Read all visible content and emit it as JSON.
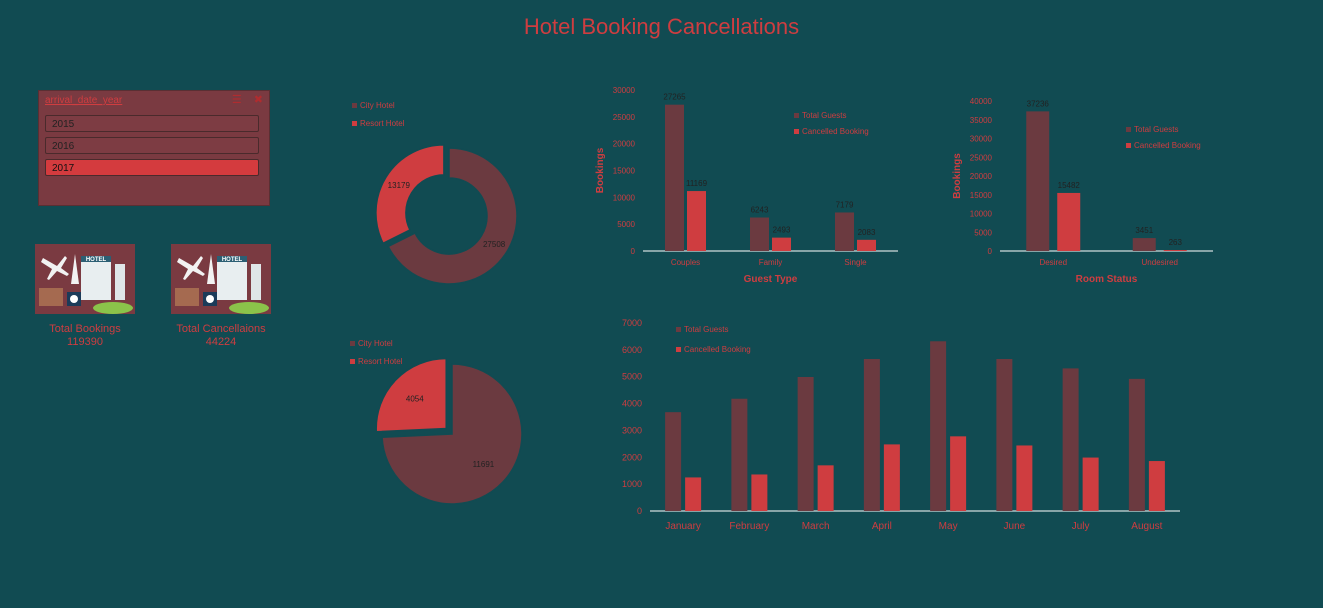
{
  "title": "Hotel Booking Cancellations",
  "colors": {
    "background": "#114b52",
    "dark": "#6b3a40",
    "red": "#cf3d40"
  },
  "slicer": {
    "header": "arrival_date_year",
    "items": [
      "2015",
      "2016",
      "2017"
    ],
    "selected": "2017",
    "icons": [
      "multi-select-icon",
      "clear-filter-icon"
    ]
  },
  "kpis": [
    {
      "label": "Total Bookings",
      "value": "119390"
    },
    {
      "label": "Total Cancellaions",
      "value": "44224"
    }
  ],
  "chart_data": [
    {
      "type": "donut",
      "legend": [
        "City Hotel",
        "Resort Hotel"
      ],
      "values": [
        27508,
        13179
      ]
    },
    {
      "type": "pie",
      "legend": [
        "City Hotel",
        "Resort Hotel"
      ],
      "values": [
        11691,
        4054
      ]
    },
    {
      "type": "bar",
      "categories": [
        "Couples",
        "Family",
        "Single"
      ],
      "series": [
        {
          "name": "Total Guests",
          "values": [
            27265,
            6243,
            7179
          ]
        },
        {
          "name": "Cancelled Booking",
          "values": [
            11169,
            2493,
            2083
          ]
        }
      ],
      "xlabel": "Guest Type",
      "ylabel": "Bookings",
      "ylim": [
        0,
        30000
      ],
      "yticks": [
        "0",
        "5000",
        "10000",
        "15000",
        "20000",
        "25000",
        "30000"
      ],
      "legend_position": "top-right"
    },
    {
      "type": "bar",
      "categories": [
        "Desired",
        "Undesired"
      ],
      "series": [
        {
          "name": "Total Guests",
          "values": [
            37236,
            3451
          ]
        },
        {
          "name": "Cancelled Booking",
          "values": [
            15482,
            263
          ]
        }
      ],
      "xlabel": "Room Status",
      "ylabel": "Bookings",
      "ylim": [
        0,
        40000
      ],
      "yticks": [
        "0",
        "5000",
        "10000",
        "15000",
        "20000",
        "25000",
        "30000",
        "35000",
        "40000"
      ],
      "legend_position": "top-right"
    },
    {
      "type": "bar",
      "categories": [
        "January",
        "February",
        "March",
        "April",
        "May",
        "June",
        "July",
        "August"
      ],
      "series": [
        {
          "name": "Total Guests",
          "values": [
            3680,
            4180,
            4990,
            5660,
            6320,
            5660,
            5310,
            4920
          ]
        },
        {
          "name": "Cancelled Booking",
          "values": [
            1250,
            1360,
            1700,
            2480,
            2780,
            2440,
            1990,
            1860
          ]
        }
      ],
      "xlabel": "",
      "ylabel": "",
      "ylim": [
        0,
        7000
      ],
      "yticks": [
        "0",
        "1000",
        "2000",
        "3000",
        "4000",
        "5000",
        "6000",
        "7000"
      ],
      "legend_position": "top-left"
    }
  ]
}
